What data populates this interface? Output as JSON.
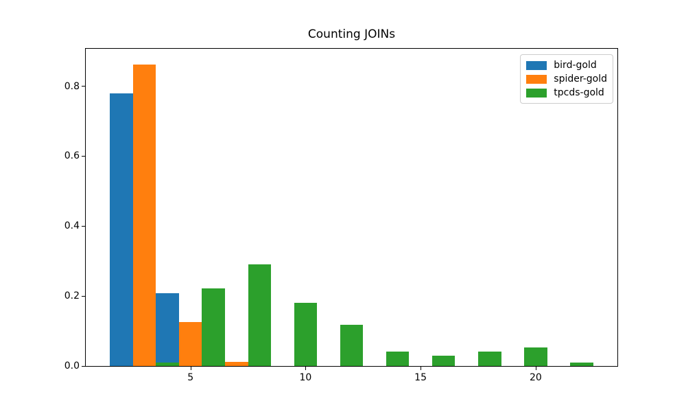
{
  "chart_data": {
    "type": "bar",
    "title": "Counting JOINs",
    "xlabel": "",
    "ylabel": "",
    "xlim": [
      0.45,
      23.55
    ],
    "ylim": [
      0,
      0.907
    ],
    "bar_width": 1,
    "grid": false,
    "x_ticks": [
      5,
      10,
      15,
      20
    ],
    "x_tick_labels": [
      "5",
      "10",
      "15",
      "20"
    ],
    "y_ticks": [
      0.0,
      0.2,
      0.4,
      0.6,
      0.8
    ],
    "y_tick_labels": [
      "0.0",
      "0.2",
      "0.4",
      "0.6",
      "0.8"
    ],
    "legend_position": "upper-right",
    "series": [
      {
        "name": "bird-gold",
        "color": "#1f77b4",
        "points": [
          [
            2,
            0.78
          ],
          [
            4,
            0.209
          ]
        ]
      },
      {
        "name": "spider-gold",
        "color": "#ff7f0e",
        "points": [
          [
            3,
            0.862
          ],
          [
            5,
            0.125
          ],
          [
            7,
            0.011
          ]
        ]
      },
      {
        "name": "tpcds-gold",
        "color": "#2ca02c",
        "points": [
          [
            4,
            0.01
          ],
          [
            6,
            0.222
          ],
          [
            8,
            0.291
          ],
          [
            10,
            0.181
          ],
          [
            12,
            0.118
          ],
          [
            14,
            0.042
          ],
          [
            16,
            0.03
          ],
          [
            18,
            0.042
          ],
          [
            20,
            0.053
          ],
          [
            22,
            0.009
          ]
        ]
      }
    ]
  }
}
